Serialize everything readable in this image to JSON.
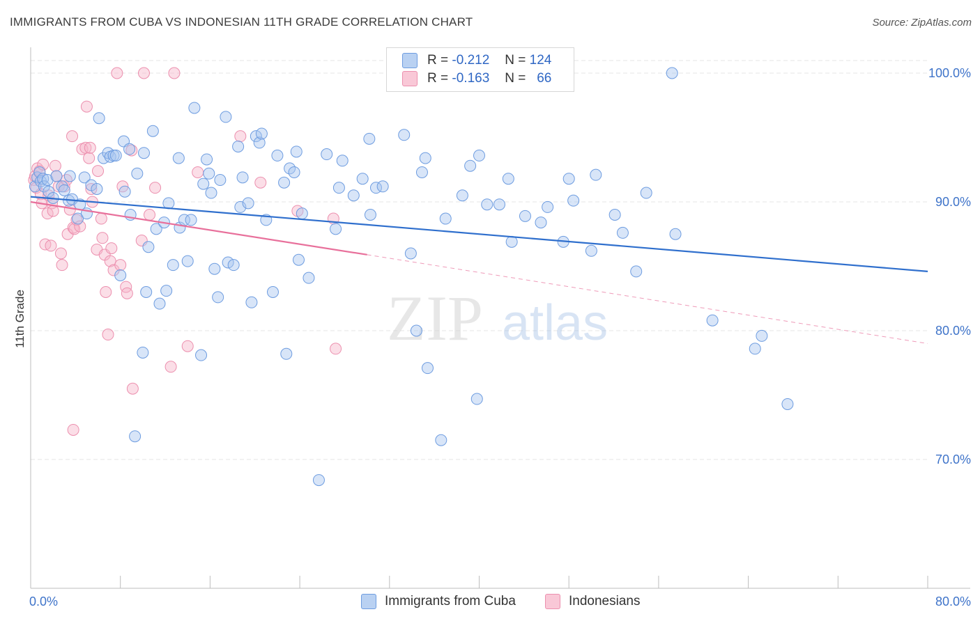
{
  "title": "IMMIGRANTS FROM CUBA VS INDONESIAN 11TH GRADE CORRELATION CHART",
  "source": "Source: ZipAtlas.com",
  "watermark": {
    "zip": "ZIP",
    "atlas": "atlas"
  },
  "legend": {
    "rows": [
      {
        "r_label": "R =",
        "r_value": "-0.212",
        "n_label": "N =",
        "n_value": "124"
      },
      {
        "r_label": "R =",
        "r_value": "-0.163",
        "n_label": "N =",
        "n_value": "66"
      }
    ]
  },
  "bottom_legend": [
    "Immigrants from Cuba",
    "Indonesians"
  ],
  "colors": {
    "blue_fill": "#a9c6ef",
    "blue_stroke": "#6d9ce0",
    "blue_line": "#2f6fcd",
    "pink_fill": "#f6b5c9",
    "pink_stroke": "#ec8fae",
    "pink_line": "#e8709b",
    "axis_text": "#3e73c9",
    "grid": "#e4e4e4"
  },
  "chart_data": {
    "type": "scatter",
    "title": "IMMIGRANTS FROM CUBA VS INDONESIAN 11TH GRADE CORRELATION CHART",
    "xlabel": "",
    "ylabel": "11th Grade",
    "xlim": [
      0,
      80
    ],
    "ylim": [
      60,
      102
    ],
    "x_tick_labels": [
      "0.0%",
      "80.0%"
    ],
    "y_ticks": [
      70,
      80,
      90,
      100
    ],
    "y_tick_labels": [
      "70.0%",
      "80.0%",
      "90.0%",
      "100.0%"
    ],
    "grid": true,
    "series": [
      {
        "name": "Immigrants from Cuba",
        "r": -0.212,
        "n": 124,
        "trend": {
          "x0": 0,
          "y0": 90.4,
          "x1": 80,
          "y1": 84.6
        },
        "points": [
          [
            0.4,
            91.2
          ],
          [
            0.6,
            91.9
          ],
          [
            0.8,
            92.3
          ],
          [
            0.9,
            91.6
          ],
          [
            1.1,
            91.8
          ],
          [
            1.2,
            91.2
          ],
          [
            1.5,
            91.7
          ],
          [
            1.6,
            90.8
          ],
          [
            2.0,
            90.3
          ],
          [
            2.3,
            92.0
          ],
          [
            2.8,
            91.2
          ],
          [
            3.0,
            90.9
          ],
          [
            3.4,
            90.1
          ],
          [
            3.5,
            92.0
          ],
          [
            3.7,
            90.2
          ],
          [
            4.2,
            88.7
          ],
          [
            4.4,
            89.8
          ],
          [
            4.8,
            91.9
          ],
          [
            5.0,
            89.1
          ],
          [
            5.4,
            91.3
          ],
          [
            5.9,
            91.0
          ],
          [
            6.1,
            96.5
          ],
          [
            6.5,
            93.4
          ],
          [
            6.9,
            93.8
          ],
          [
            7.1,
            93.5
          ],
          [
            7.4,
            93.6
          ],
          [
            7.6,
            93.6
          ],
          [
            8.0,
            84.3
          ],
          [
            8.3,
            94.7
          ],
          [
            8.4,
            90.8
          ],
          [
            8.8,
            94.1
          ],
          [
            8.9,
            89.0
          ],
          [
            9.3,
            71.8
          ],
          [
            9.5,
            92.2
          ],
          [
            10.0,
            78.3
          ],
          [
            10.1,
            93.8
          ],
          [
            10.3,
            83.0
          ],
          [
            10.5,
            86.5
          ],
          [
            10.9,
            95.5
          ],
          [
            11.2,
            87.9
          ],
          [
            11.5,
            82.1
          ],
          [
            11.9,
            88.4
          ],
          [
            12.1,
            83.1
          ],
          [
            12.3,
            89.9
          ],
          [
            12.7,
            85.1
          ],
          [
            13.2,
            93.4
          ],
          [
            13.3,
            88.0
          ],
          [
            13.7,
            88.6
          ],
          [
            14.0,
            85.4
          ],
          [
            14.3,
            88.6
          ],
          [
            14.6,
            97.3
          ],
          [
            15.2,
            78.1
          ],
          [
            15.4,
            91.4
          ],
          [
            15.7,
            93.3
          ],
          [
            15.9,
            92.2
          ],
          [
            16.1,
            90.7
          ],
          [
            16.4,
            84.8
          ],
          [
            16.7,
            82.6
          ],
          [
            16.9,
            91.7
          ],
          [
            17.4,
            96.6
          ],
          [
            17.6,
            85.3
          ],
          [
            18.1,
            85.1
          ],
          [
            18.5,
            94.3
          ],
          [
            18.7,
            89.6
          ],
          [
            18.9,
            91.9
          ],
          [
            19.4,
            89.9
          ],
          [
            19.7,
            82.2
          ],
          [
            20.1,
            95.1
          ],
          [
            20.4,
            94.6
          ],
          [
            20.6,
            95.3
          ],
          [
            21.0,
            88.6
          ],
          [
            21.6,
            83.0
          ],
          [
            22.0,
            93.6
          ],
          [
            22.6,
            91.5
          ],
          [
            22.8,
            78.2
          ],
          [
            23.1,
            92.6
          ],
          [
            23.5,
            92.3
          ],
          [
            23.7,
            93.9
          ],
          [
            23.9,
            85.5
          ],
          [
            24.2,
            89.1
          ],
          [
            24.8,
            84.1
          ],
          [
            25.7,
            68.4
          ],
          [
            26.4,
            93.7
          ],
          [
            27.2,
            87.9
          ],
          [
            27.5,
            91.1
          ],
          [
            27.8,
            93.2
          ],
          [
            28.8,
            90.5
          ],
          [
            29.6,
            91.8
          ],
          [
            30.2,
            94.9
          ],
          [
            30.3,
            89.0
          ],
          [
            30.8,
            91.1
          ],
          [
            31.4,
            91.2
          ],
          [
            33.3,
            95.2
          ],
          [
            33.9,
            86.0
          ],
          [
            34.4,
            80.0
          ],
          [
            34.9,
            92.3
          ],
          [
            35.2,
            93.4
          ],
          [
            35.4,
            77.1
          ],
          [
            36.6,
            71.5
          ],
          [
            37.0,
            88.7
          ],
          [
            38.5,
            90.5
          ],
          [
            39.2,
            92.8
          ],
          [
            39.8,
            74.7
          ],
          [
            40.0,
            93.6
          ],
          [
            40.7,
            89.8
          ],
          [
            41.8,
            89.8
          ],
          [
            42.6,
            91.8
          ],
          [
            42.9,
            86.9
          ],
          [
            44.1,
            88.9
          ],
          [
            45.5,
            88.4
          ],
          [
            46.1,
            89.6
          ],
          [
            47.5,
            86.9
          ],
          [
            48.0,
            91.8
          ],
          [
            48.4,
            90.1
          ],
          [
            50.0,
            86.2
          ],
          [
            50.4,
            92.1
          ],
          [
            52.1,
            89.0
          ],
          [
            52.8,
            87.6
          ],
          [
            54.0,
            84.6
          ],
          [
            54.9,
            90.7
          ],
          [
            57.2,
            100.0
          ],
          [
            57.5,
            87.5
          ],
          [
            60.8,
            80.8
          ],
          [
            64.6,
            78.6
          ],
          [
            65.2,
            79.6
          ],
          [
            67.5,
            74.3
          ]
        ]
      },
      {
        "name": "Indonesians",
        "r": -0.163,
        "n": 66,
        "trend": {
          "x0": 0,
          "y0": 90.0,
          "x1": 30,
          "y1": 85.9
        },
        "trend_extension": {
          "x0": 30,
          "y0": 85.9,
          "x1": 80,
          "y1": 79.0
        },
        "points": [
          [
            0.3,
            91.7
          ],
          [
            0.4,
            92.0
          ],
          [
            0.5,
            91.1
          ],
          [
            0.6,
            92.6
          ],
          [
            0.8,
            92.4
          ],
          [
            0.9,
            90.6
          ],
          [
            1.0,
            89.9
          ],
          [
            1.1,
            92.9
          ],
          [
            1.3,
            86.7
          ],
          [
            1.5,
            89.1
          ],
          [
            1.6,
            90.5
          ],
          [
            1.8,
            86.6
          ],
          [
            1.9,
            89.9
          ],
          [
            2.0,
            89.3
          ],
          [
            2.2,
            92.8
          ],
          [
            2.3,
            92.0
          ],
          [
            2.5,
            91.2
          ],
          [
            2.7,
            86.0
          ],
          [
            2.8,
            85.1
          ],
          [
            3.0,
            91.2
          ],
          [
            3.2,
            91.7
          ],
          [
            3.3,
            87.5
          ],
          [
            3.5,
            89.4
          ],
          [
            3.7,
            95.1
          ],
          [
            3.8,
            88.0
          ],
          [
            3.9,
            87.9
          ],
          [
            4.1,
            88.6
          ],
          [
            4.4,
            88.1
          ],
          [
            4.6,
            94.1
          ],
          [
            4.9,
            94.2
          ],
          [
            5.0,
            97.4
          ],
          [
            5.2,
            93.4
          ],
          [
            5.3,
            94.2
          ],
          [
            5.4,
            91.0
          ],
          [
            5.5,
            90.0
          ],
          [
            5.9,
            86.3
          ],
          [
            6.0,
            92.4
          ],
          [
            6.3,
            88.7
          ],
          [
            6.4,
            87.2
          ],
          [
            6.6,
            85.9
          ],
          [
            6.7,
            83.0
          ],
          [
            6.9,
            79.7
          ],
          [
            7.1,
            85.4
          ],
          [
            7.2,
            86.4
          ],
          [
            7.4,
            84.7
          ],
          [
            7.7,
            100.0
          ],
          [
            8.0,
            85.1
          ],
          [
            8.2,
            91.2
          ],
          [
            8.5,
            83.4
          ],
          [
            8.6,
            82.9
          ],
          [
            9.0,
            94.0
          ],
          [
            9.1,
            75.5
          ],
          [
            9.9,
            87.0
          ],
          [
            10.1,
            100.0
          ],
          [
            10.6,
            89.0
          ],
          [
            11.1,
            91.1
          ],
          [
            12.5,
            77.2
          ],
          [
            12.8,
            100.0
          ],
          [
            14.0,
            78.8
          ],
          [
            14.9,
            92.3
          ],
          [
            18.7,
            95.1
          ],
          [
            20.5,
            91.5
          ],
          [
            23.8,
            89.3
          ],
          [
            27.0,
            88.7
          ],
          [
            27.2,
            78.6
          ],
          [
            3.8,
            72.3
          ]
        ]
      }
    ]
  }
}
